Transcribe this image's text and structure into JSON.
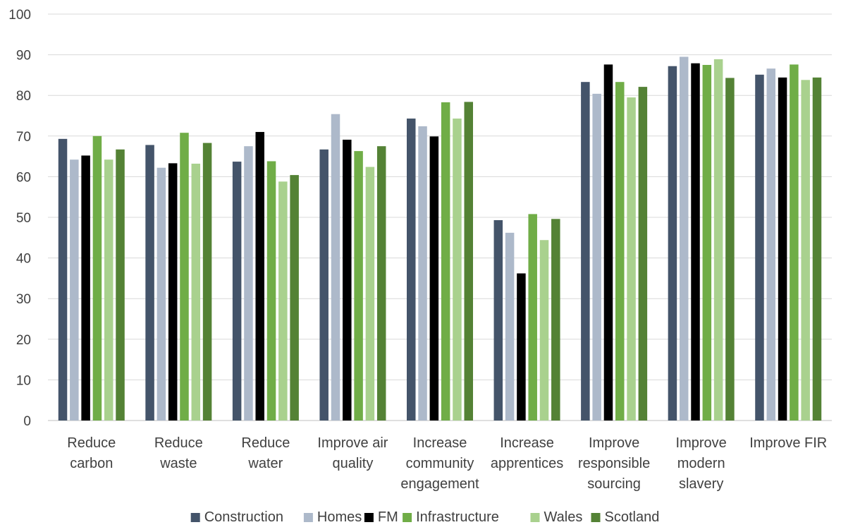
{
  "chart_data": {
    "type": "bar",
    "title": "",
    "xlabel": "",
    "ylabel": "",
    "ylim": [
      0,
      100
    ],
    "yticks": [
      "0",
      "10",
      "20",
      "30",
      "40",
      "50",
      "60",
      "70",
      "80",
      "90",
      "100"
    ],
    "grid": true,
    "legend_position": "bottom",
    "categories": [
      [
        "Reduce",
        "carbon"
      ],
      [
        "Reduce",
        "waste"
      ],
      [
        "Reduce",
        "water"
      ],
      [
        "Improve air",
        "quality"
      ],
      [
        "Increase",
        "community",
        "engagement"
      ],
      [
        "Increase",
        "apprentices"
      ],
      [
        "Improve",
        "responsible",
        "sourcing"
      ],
      [
        "Improve",
        "modern",
        "slavery"
      ],
      [
        "Improve FIR"
      ]
    ],
    "series": [
      {
        "name": "Construction",
        "color": "#44546a",
        "values": [
          69.3,
          67.8,
          63.7,
          66.7,
          74.3,
          49.3,
          83.3,
          87.2,
          85.1
        ]
      },
      {
        "name": "Homes",
        "color": "#adb9ca",
        "values": [
          64.2,
          62.2,
          67.5,
          75.4,
          72.4,
          46.2,
          80.4,
          89.5,
          86.6
        ]
      },
      {
        "name": "FM",
        "color": "#000000",
        "values": [
          65.2,
          63.3,
          71.0,
          69.1,
          69.9,
          36.2,
          87.6,
          87.9,
          84.4
        ]
      },
      {
        "name": "Infrastructure",
        "color": "#70ad47",
        "values": [
          70.0,
          70.8,
          63.8,
          66.3,
          78.3,
          50.8,
          83.3,
          87.5,
          87.6
        ]
      },
      {
        "name": "Wales",
        "color": "#a9d18e",
        "values": [
          64.2,
          63.2,
          58.8,
          62.4,
          74.3,
          44.4,
          79.5,
          88.9,
          83.8
        ]
      },
      {
        "name": "Scotland",
        "color": "#548235",
        "values": [
          66.7,
          68.3,
          60.4,
          67.5,
          78.4,
          49.6,
          82.1,
          84.3,
          84.4
        ]
      }
    ]
  }
}
